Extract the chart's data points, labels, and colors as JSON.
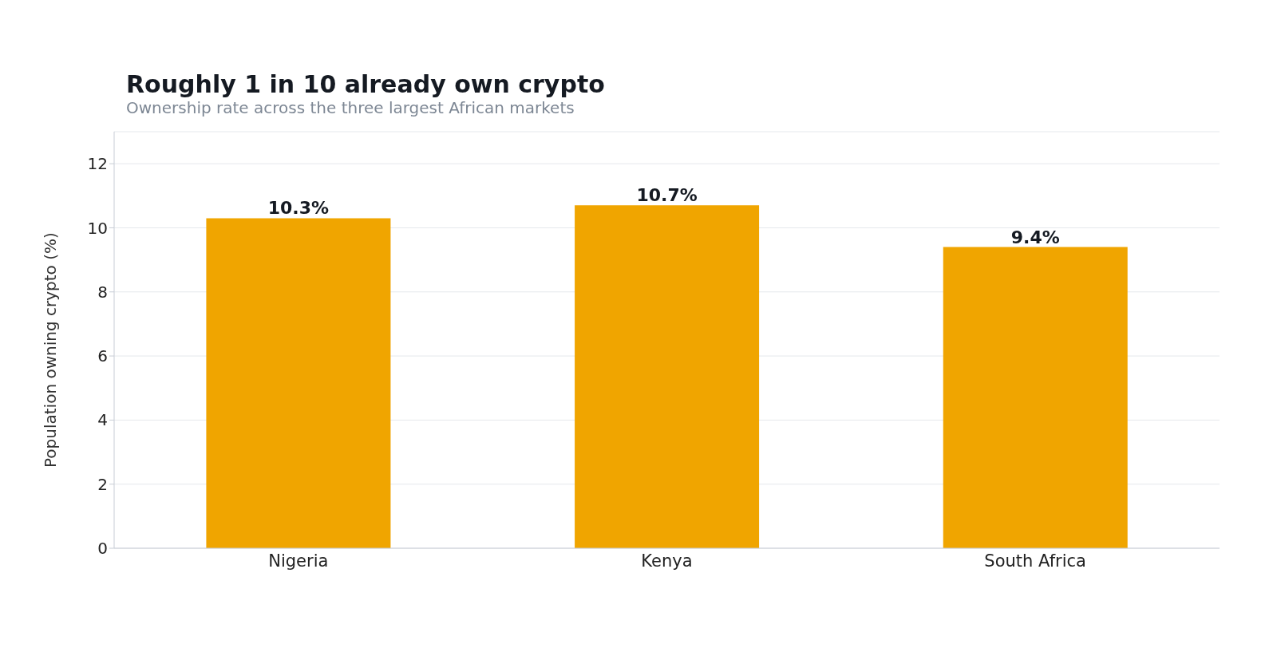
{
  "chart_data": {
    "type": "bar",
    "title": "Roughly 1 in 10 already own crypto",
    "subtitle": "Ownership rate across the three largest African markets",
    "ylabel": "Population owning crypto (%)",
    "categories": [
      "Nigeria",
      "Kenya",
      "South Africa"
    ],
    "values": [
      10.3,
      10.7,
      9.4
    ],
    "value_labels": [
      "10.3%",
      "10.7%",
      "9.4%"
    ],
    "color": "#f0a500",
    "ylim": [
      0,
      13
    ],
    "yticks": [
      0,
      2,
      4,
      6,
      8,
      10,
      12
    ],
    "grid": "y"
  }
}
